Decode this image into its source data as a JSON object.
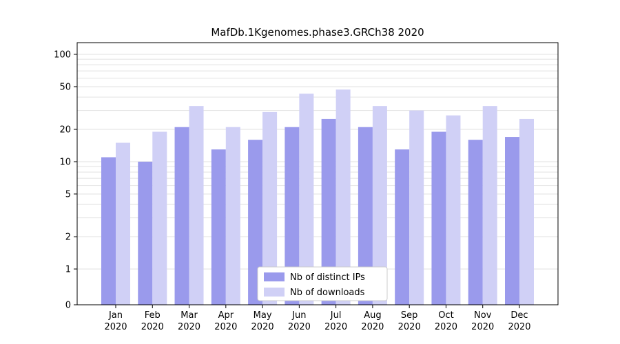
{
  "chart_data": {
    "type": "bar",
    "title": "MafDb.1Kgenomes.phase3.GRCh38 2020",
    "categories": [
      "Jan",
      "Feb",
      "Mar",
      "Apr",
      "May",
      "Jun",
      "Jul",
      "Aug",
      "Sep",
      "Oct",
      "Nov",
      "Dec"
    ],
    "year": "2020",
    "series": [
      {
        "name": "Nb of distinct IPs",
        "color": "#9a9aec",
        "values": [
          11,
          10,
          21,
          13,
          16,
          21,
          25,
          21,
          13,
          19,
          16,
          17
        ]
      },
      {
        "name": "Nb of downloads",
        "color": "#d0d0f6",
        "values": [
          15,
          19,
          33,
          21,
          29,
          43,
          47,
          33,
          30,
          27,
          33,
          25
        ]
      }
    ],
    "yscale": "symlog",
    "yticks": [
      0,
      1,
      2,
      5,
      10,
      20,
      50,
      100
    ],
    "ylim": [
      0,
      100
    ],
    "xlabel": "",
    "ylabel": "",
    "grid": true,
    "grid_color": "#e2e2e2",
    "axis_color": "#000000",
    "legend_position": "bottom-center",
    "legend_border_color": "#cccccc",
    "background_color": "#ffffff"
  }
}
